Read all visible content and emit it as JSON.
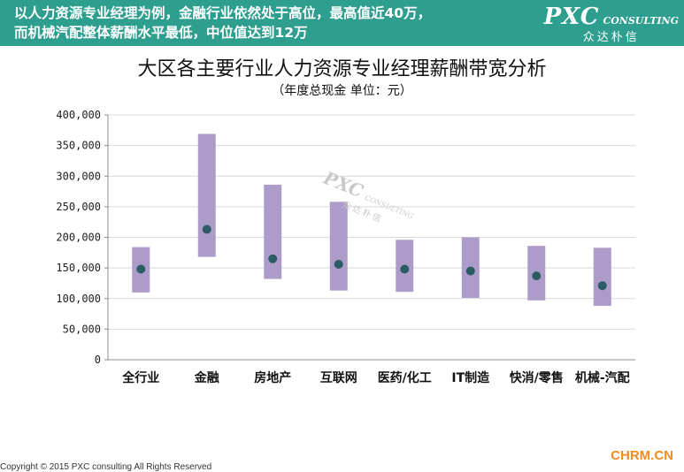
{
  "header": {
    "line1": "以人力资源专业经理为例，金融行业依然处于高位，最高值近40万，",
    "line2": "而机械汽配整体薪酬水平最低，中位值达到12万",
    "logo_main": "PXC",
    "logo_sub": "CONSULTING",
    "logo_cn": "众达朴信"
  },
  "watermark": {
    "main": "PXC",
    "sub": "CONSULTING",
    "cn": "众达朴信"
  },
  "footer": {
    "copyright": "Copyright © 2015 PXC consulting All Rights Reserved",
    "site": "CHRM.CN"
  },
  "colors": {
    "banner": "#2e9e8f",
    "bar": "#ad9cc9",
    "dot": "#2b5c66"
  },
  "chart_data": {
    "type": "bar",
    "title": "大区各主要行业人力资源专业经理薪酬带宽分析",
    "subtitle": "（年度总现金  单位：元）",
    "categories": [
      "全行业",
      "金融",
      "房地产",
      "互联网",
      "医药/化工",
      "IT制造",
      "快消/零售",
      "机械-汽配"
    ],
    "series": [
      {
        "name": "",
        "low": [
          110000,
          168000,
          132000,
          113000,
          111000,
          101000,
          97000,
          88000
        ]
      },
      {
        "name": "",
        "high": [
          184000,
          369000,
          286000,
          258000,
          196000,
          200000,
          186000,
          183000
        ]
      },
      {
        "name": "",
        "median": [
          148000,
          213000,
          165000,
          156000,
          148000,
          145000,
          137000,
          121000
        ]
      }
    ],
    "yticks": [
      "0",
      "50,000",
      "100,000",
      "150,000",
      "200,000",
      "250,000",
      "300,000",
      "350,000",
      "400,000"
    ],
    "ylim": [
      0,
      400000
    ],
    "grid": true
  }
}
